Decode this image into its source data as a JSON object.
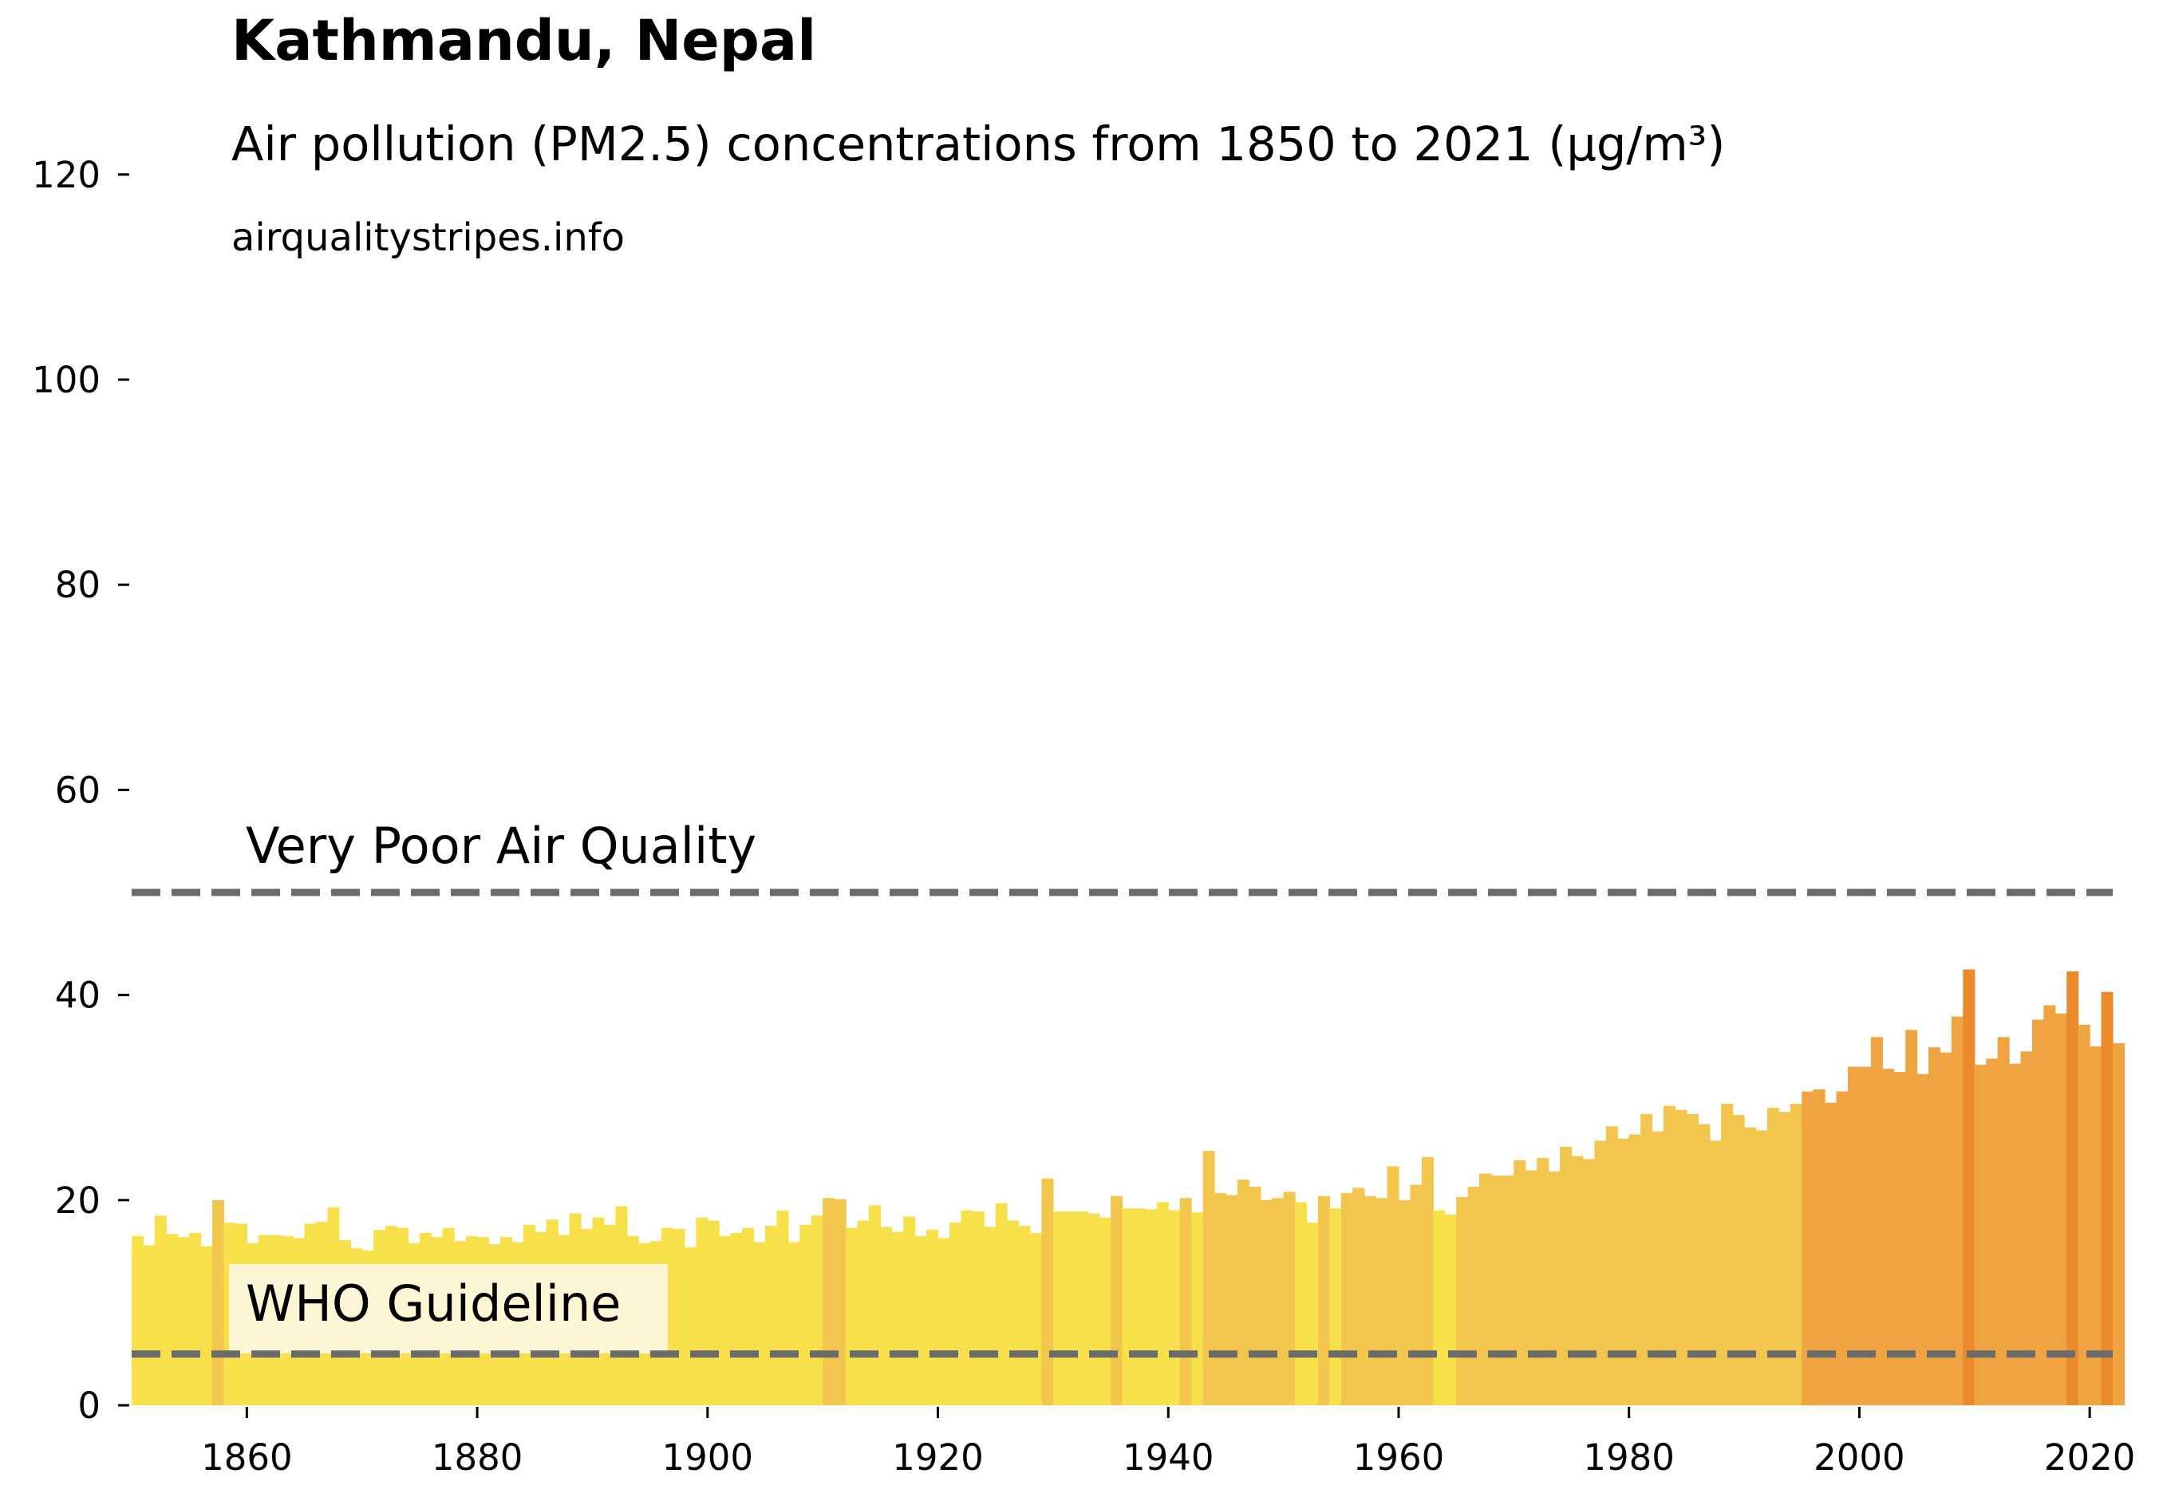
{
  "title": "Kathmandu, Nepal",
  "subtitle": "Air pollution (PM2.5) concentrations from 1850 to 2021 (µg/m³)",
  "source": "airqualitystripes.info",
  "chart_data": {
    "type": "bar",
    "xlim": [
      1850,
      2022
    ],
    "ylim": [
      0,
      125
    ],
    "yticks": [
      0,
      20,
      40,
      60,
      80,
      100,
      120
    ],
    "xticks": [
      1860,
      1880,
      1900,
      1920,
      1940,
      1960,
      1980,
      2000,
      2020
    ],
    "grid": false,
    "x_start": 1850,
    "values": [
      16.5,
      15.6,
      18.5,
      16.7,
      16.4,
      16.8,
      15.5,
      20.0,
      17.8,
      17.7,
      15.8,
      16.6,
      16.6,
      16.5,
      16.3,
      17.7,
      17.9,
      19.3,
      16.1,
      15.3,
      15.1,
      17.1,
      17.5,
      17.3,
      15.8,
      16.8,
      16.4,
      17.3,
      16.0,
      16.5,
      16.4,
      15.7,
      16.4,
      15.9,
      17.6,
      16.9,
      18.1,
      16.6,
      18.7,
      17.2,
      18.3,
      17.6,
      19.4,
      16.5,
      15.8,
      16.0,
      17.3,
      17.2,
      15.4,
      18.3,
      18.0,
      16.5,
      16.8,
      17.3,
      15.9,
      17.5,
      19.0,
      15.9,
      17.6,
      18.5,
      20.2,
      20.1,
      17.3,
      18.0,
      19.5,
      17.4,
      16.9,
      18.4,
      16.5,
      17.1,
      16.3,
      17.8,
      19.0,
      18.9,
      17.4,
      19.7,
      18.0,
      17.5,
      16.8,
      22.1,
      18.9,
      18.9,
      18.9,
      18.7,
      18.3,
      20.4,
      19.2,
      19.2,
      19.1,
      19.8,
      19.0,
      20.2,
      18.8,
      24.8,
      20.7,
      20.5,
      22.0,
      21.3,
      20.0,
      20.2,
      20.8,
      19.8,
      17.8,
      20.4,
      19.2,
      20.7,
      21.2,
      20.4,
      20.2,
      23.3,
      20.0,
      21.5,
      24.2,
      19.0,
      18.6,
      20.3,
      21.3,
      22.6,
      22.4,
      22.4,
      23.9,
      22.9,
      24.1,
      22.8,
      25.2,
      24.3,
      24.0,
      25.8,
      27.2,
      26.0,
      26.4,
      28.4,
      26.7,
      29.2,
      28.8,
      28.4,
      27.4,
      25.8,
      29.4,
      28.3,
      27.1,
      26.8,
      29.0,
      28.6,
      29.4,
      30.6,
      30.8,
      29.5,
      30.6,
      33.0,
      33.0,
      35.9,
      32.8,
      32.5,
      36.6,
      32.3,
      34.9,
      34.4,
      37.9,
      42.5,
      33.2,
      33.8,
      35.9,
      33.3,
      34.5,
      37.6,
      39.0,
      38.2,
      42.3,
      37.1,
      35.0,
      40.3,
      35.3
    ],
    "annotations": [
      {
        "text": "Very Poor Air Quality",
        "y": 50
      },
      {
        "text": "WHO Guideline",
        "y": 5
      }
    ],
    "colors": {
      "low": "#f8e04a",
      "mid": "#f2c64c",
      "high": "#f0a441",
      "peak": "#ea8a2b",
      "reference_line": "#6b6b6b",
      "label_box": "#fdf6d4"
    }
  }
}
